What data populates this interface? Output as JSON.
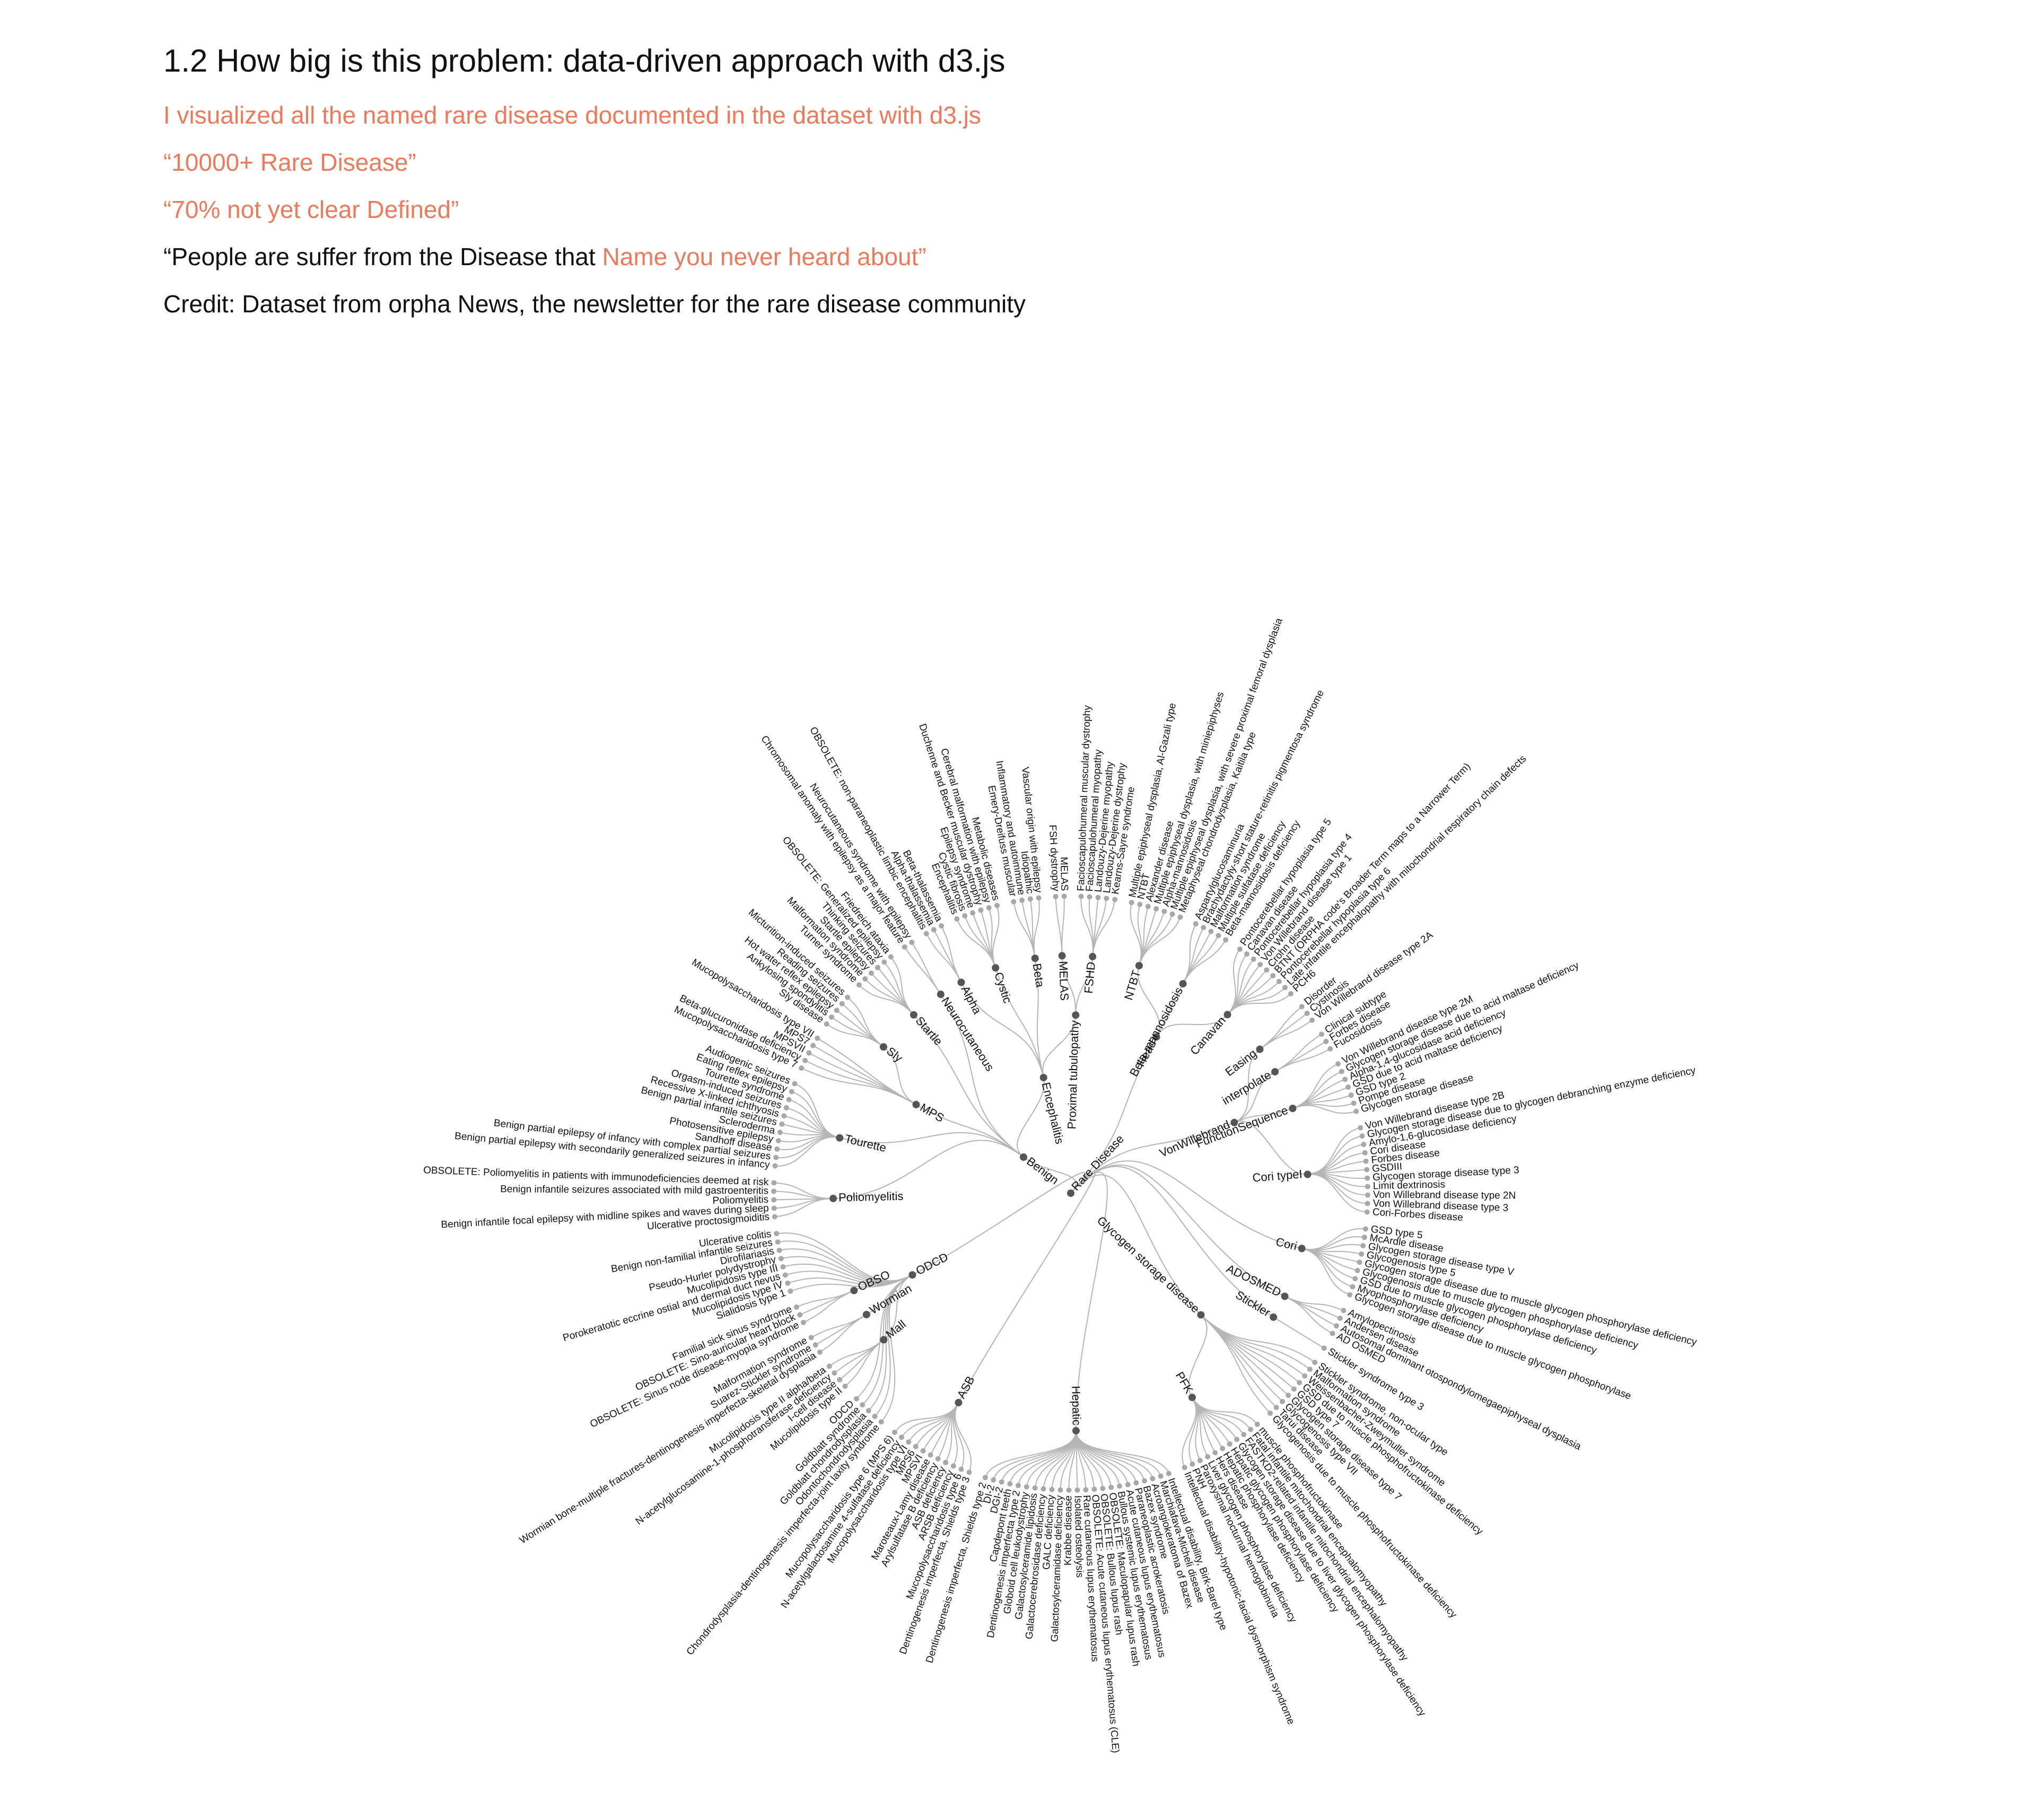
{
  "header": {
    "title": "1.2 How big is this problem: data-driven approach with d3.js",
    "lines": [
      "I visualized all the named rare disease documented in the dataset with d3.js",
      "“10000+ Rare Disease”",
      "“70% not yet clear Defined”"
    ],
    "quote": {
      "before": "“People are suffer from the Disease that ",
      "highlight": "Name you never heard about”"
    },
    "credit": "Credit: Dataset from orpha News, the newsletter for the rare disease community"
  },
  "tree": {
    "name": "Rare Disease",
    "children": [
      {
        "name": "ASB",
        "children": [
          "Dentinogenesis imperfecta, Shields type 3",
          "Mucopolysaccharidosis type 6",
          "ARSB deficiency",
          "ASB deficiency",
          "Arylsulfatase B deficiency",
          "Maroteaux-Lamy disease",
          "MPSVI",
          "MPS6",
          "Mucopolysaccharidosis type VI",
          "N-acetylgalactosamine 4-sulfatase deficiency",
          "Mucopolysaccharidosis type 6 (MPS 6)"
        ]
      },
      {
        "name": "ODCD",
        "children": [
          "Chondrodysplasia-dentinogenesis imperfecta-joint laxity syndrome",
          "Odontochondrodysplasia",
          "Goldblatt chondrodysplasia",
          "Goldblatt syndrome",
          "ODCD",
          {
            "name": "Mall",
            "children": [
              "Mucolipidosis type II",
              "I-cell disease",
              "N-acetylglucosamine-1-phosphotransferase deficiency",
              "Mucolipidosis type II alpha/beta"
            ]
          },
          {
            "name": "Wormian",
            "children": [
              "Wormian bone-multiple fractures-dentinogenesis imperfecta-skeletal dysplasia",
              "Suarez-Stickler syndrome",
              "Malformation syndrome"
            ]
          },
          {
            "name": "OBSO",
            "children": [
              "OBSOLETE: Sinus node disease-myopia syndrome",
              "OBSOLETE: Sino-auricular heart block",
              "Familial sick sinus syndrome"
            ]
          },
          "Sialidosis type 1",
          "Mucolipidosis type IV",
          "Porokeratotic eccrine ostial and dermal duct nevus",
          "Mucolipidosis type III",
          "Pseudo-Hurler polydystrophy",
          "Dirofilariasis",
          "Benign non-familial infantile seizures",
          "Ulcerative colitis"
        ]
      },
      {
        "name": "Benign",
        "children": [
          {
            "name": "Poliomyelitis",
            "children": [
              "Ulcerative proctosigmoiditis",
              "Benign infantile focal epilepsy with midline spikes and waves during sleep",
              "Poliomyelitis",
              "Benign infantile seizures associated with mild gastroenteritis",
              "OBSOLETE: Poliomyelitis in patients with immunodeficiencies deemed at risk"
            ]
          },
          {
            "name": "Tourette",
            "children": [
              "Benign partial epilepsy with secondarily generalized seizures in infancy",
              "Benign partial epilepsy of infancy with complex partial seizures",
              "Sandhoff disease",
              "Photosensitive epilepsy",
              "Scleroderma",
              "Benign partial infantile seizures",
              "Recessive X-linked ichthyosis",
              "Orgasm-induced seizures",
              "Tourette syndrome",
              "Eating reflex epilepsy",
              "Audiogenic seizures"
            ]
          },
          {
            "name": "MPS",
            "children": [
              "Mucopolysaccharidosis type 7",
              "Beta-glucuronidase deficiency",
              "MPSVII",
              "MPS7",
              "Mucopolysaccharidosis type VII",
              {
                "name": "Sly",
                "children": [
                  "Sly disease",
                  "Ankylosing spondylitis",
                  "Hot water reflex epilepsy",
                  "Reading seizures",
                  "Micturition-induced seizures"
                ]
              }
            ]
          },
          {
            "name": "Startle",
            "children": [
              "Turner syndrome",
              "Malformation syndrome",
              "Startle epilepsy",
              "Thinking seizures",
              "OBSOLETE: Generalized epilepsy",
              "Friedreich ataxia"
            ]
          },
          {
            "name": "Neurocutaneous",
            "children": [
              "Chromosomal anomaly with epilepsy as a major feature",
              "Neurocutaneous syndrome with epilepsy"
            ]
          },
          {
            "name": "Encephalitis",
            "children": [
              {
                "name": "Alpha",
                "children": [
                  "OBSOLETE: non-paraneoplastic limbic encephalitis",
                  "Alpha-thalassemia",
                  "Beta-thalassemia"
                ]
              },
              {
                "name": "Cystic",
                "children": [
                  "Encephalitis",
                  "Cystic fibrosis",
                  "Epilepsy syndrome",
                  "Duchenne and Becker muscular dystrophy",
                  "Cerebral malformation with epilepsy",
                  "Metabolic diseases"
                ]
              },
              {
                "name": "Beta",
                "children": [
                  "Emery-Dreifuss muscular",
                  "Inflammatory and autoimmune",
                  "Idiopathic",
                  "Vascular origin with epilepsy"
                ]
              },
              {
                "name": "Proximal tubulopathy",
                "children": [
                  {
                    "name": "MELAS",
                    "children": [
                      "FSH dystrophy",
                      "MELAS"
                    ]
                  },
                  {
                    "name": "FSHD",
                    "children": [
                      "Facioscapulohumeral muscular dystrophy",
                      "Facioscapulohumeral myopathy",
                      "Landouzy-Dejerine myopathy",
                      "Landouzy-Dejerine dystrophy",
                      "Kearns-Sayre syndrome"
                    ]
                  }
                ]
              }
            ]
          }
        ]
      },
      {
        "name": "Head",
        "children": [
          {
            "name": "NTBT",
            "children": [
              "Multiple epiphyseal dysplasia, Al-Gazali type",
              "NTBT",
              "Alexander disease",
              "Multiple epiphyseal dysplasia, with miniepiphyses",
              "Alpha-mannosidosis",
              "Multiple epiphyseal dysplasia, with severe proximal femoral dysplasia",
              "Metaphyseal chondrodysplasia, Kaitila type"
            ]
          },
          {
            "name": "Beta-mannosidosis",
            "children": [
              "Aspartylglucosaminuria",
              "Brachydactyly-short stature-retinitis pigmentosa syndrome",
              "Malformation syndrome",
              "Multiple sulfatase deficiency",
              "Beta-mannosidosis deficiency"
            ]
          },
          {
            "name": "Canavan",
            "children": [
              "Pontocerebellar hypoplasia type 5",
              "Canavan disease",
              "Pontocerebellar hypoplasia type 4",
              "Von Willebrand disease type 1",
              "Crohn disease",
              "BTNT (ORPHA code's Broader Term maps to a Narrower Term)",
              "Pontocerebellar hypoplasia type 6",
              "Late infantile encephalopathy with mitochondrial respiratory chain defects",
              "PCH6"
            ]
          }
        ]
      },
      {
        "name": "VonWillebrand",
        "children": [
          {
            "name": "Easing",
            "children": [
              "Disorder",
              "Cystinosis",
              "Von Willebrand disease type 2A"
            ]
          },
          {
            "name": "interpolate",
            "children": [
              "Clinical subtype",
              "Forbes disease",
              "Fucosidosis"
            ]
          },
          {
            "name": "FunctionSequence",
            "children": [
              "Von Willebrand disease type 2M",
              "Glycogen storage disease due to acid maltase deficiency",
              "Alpha-1,4-glucosidase acid deficiency",
              "GSD due to acid maltase deficiency",
              "GSD type 2",
              "Pompe disease",
              "Glycogen storage disease"
            ]
          },
          {
            "name": "Cori typeI",
            "children": [
              "Von Willebrand disease type 2B",
              "Glycogen storage disease due to glycogen debranching enzyme deficiency",
              "Amylo-1,6-glucosidase deficiency",
              "Cori disease",
              "Forbes disease",
              "GSDIII",
              "Glycogen storage disease type 3",
              "Limit dextrinosis",
              "Von Willebrand disease type 2N",
              "Von Willebrand disease type 3",
              "Cori-Forbes disease"
            ]
          }
        ]
      },
      {
        "name": "Cori",
        "children": [
          "GSD type 5",
          "McArdle disease",
          "Glycogen storage disease type V",
          "Glycogenosis type 5",
          "Glycogen storage disease due to muscle glycogen phosphorylase deficiency",
          "Glycogenosis due to muscle glycogen phosphorylase deficiency",
          "GSD due to muscle glycogen phosphorylase deficiency",
          "Myophosphorylase deficiency",
          "Glycogen storage disease due to muscle glycogen phosphorylase"
        ]
      },
      {
        "name": "ADOSMED",
        "children": [
          "Amylopectinosis",
          "Andersen disease",
          "Autosomal dominant otospondylomegaepiphyseal dysplasia",
          "AD OSMED"
        ]
      },
      {
        "name": "Stickler",
        "children": [
          "Stickler syndrome type 3"
        ]
      },
      {
        "name": "Glycogen storage disease",
        "children": [
          "Stickler syndrome, non-ocular type",
          "Malformation syndrome",
          "Weissenbacher-Zweymuller syndrome",
          "GSD due to muscle phosphofructokinase deficiency",
          "GSD type 7",
          "Glycogen storage disease type 7",
          "Glycogenosis type VII",
          "Tarui disease",
          "Glycogenosis due to muscle phosphofructokinase deficiency",
          {
            "name": "PFK",
            "children": [
              "muscle phosphofructokinase",
              "Fatal infantile mitochondrial encephalomyopathy",
              "FASTKD2-related infantile mitochondrial encephalomyopathy",
              "Glycogen storage disease due to liver glycogen phosphorylase deficiency",
              "Hepatic glycogen phosphorylase deficiency",
              "Hepatic phosphorylase deficiency",
              "Hers disease",
              "Liver glycogen phosphorylase deficiency",
              "Paroxysmal nocturnal hemoglobinuria",
              "PNH",
              "Intellectual disability-hypotonic-facial dysmorphism syndrome"
            ]
          }
        ]
      },
      {
        "name": "Hepatic",
        "children": [
          "Intellectual disability, Birk-Barel type",
          "Marchiafava-Micheli disease",
          "Acroangiokeratoma of Bazex",
          "Bazex syndrome",
          "Paraneoplastic acrokeratosis",
          "Acute cutaneous lupus erythematosus",
          "Bullous systemic lupus erythematosus",
          "OBSOLETE: Maculopapular lupus rash",
          "OBSOLETE: Bullous lupus rash",
          "OBSOLETE: Acute cutaneous lupus erythematosus (CLE)",
          "Rare cutaneous lupus erythematosus",
          "Isolated osteolysis",
          "Krabbe disease",
          "Galactosylceramidase deficiency",
          "GALC deficiency",
          "Galactocerebrosidase deficiency",
          "Galactosylceramide lipidosis",
          "Globoid cell leukodystrophy",
          "Dentinogenesis imperfecta type 2",
          "Capdepont teeth",
          "DGI-2",
          "DI-2",
          "Dentinogenesis imperfecta, Shields type 2"
        ]
      }
    ]
  }
}
